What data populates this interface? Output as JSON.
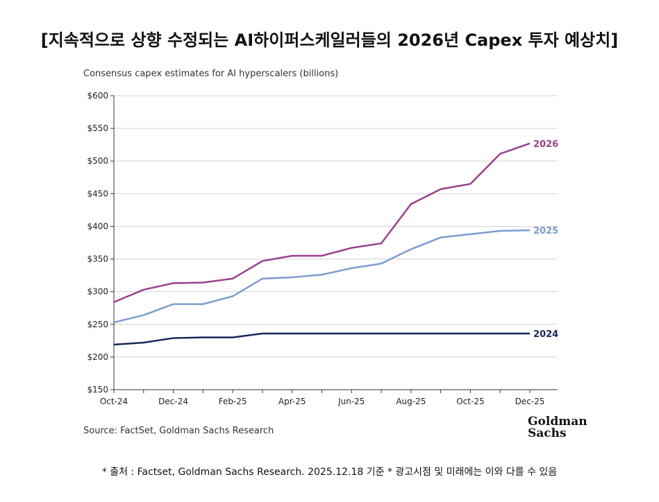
{
  "header": {
    "title": "[지속적으로 상향 수정되는 AI하이퍼스케일러들의 2026년 Capex 투자 예상치]"
  },
  "footer": {
    "note": "* 출처 : Factset, Goldman Sachs Research. 2025.12.18 기준 * 광고시점 및 미래에는 이와 다를 수 있음",
    "logo": "Goldman Sachs"
  },
  "chart_data": {
    "type": "line",
    "title": "Consensus capex estimates for AI hyperscalers (billions)",
    "source": "Source: FactSet, Goldman Sachs Research",
    "x": [
      "Oct-24",
      "Nov-24",
      "Dec-24",
      "Jan-25",
      "Feb-25",
      "Mar-25",
      "Apr-25",
      "May-25",
      "Jun-25",
      "Jul-25",
      "Aug-25",
      "Sep-25",
      "Oct-25",
      "Nov-25",
      "Dec-25"
    ],
    "xticks": [
      "Oct-24",
      "Dec-24",
      "Feb-25",
      "Apr-25",
      "Jun-25",
      "Aug-25",
      "Oct-25",
      "Dec-25"
    ],
    "yticks": [
      "$150",
      "$200",
      "$250",
      "$300",
      "$350",
      "$400",
      "$450",
      "$500",
      "$550",
      "$600"
    ],
    "ylim": [
      150,
      600
    ],
    "grid": true,
    "series": [
      {
        "name": "2026",
        "color": "#9b3f8c",
        "values": [
          284,
          303,
          313,
          314,
          320,
          347,
          355,
          355,
          367,
          374,
          434,
          457,
          465,
          511,
          527
        ]
      },
      {
        "name": "2025",
        "color": "#7b9bcf",
        "values": [
          253,
          264,
          281,
          281,
          293,
          320,
          322,
          326,
          336,
          343,
          365,
          383,
          388,
          393,
          394
        ]
      },
      {
        "name": "2024",
        "color": "#15285a",
        "values": [
          219,
          222,
          229,
          230,
          230,
          236,
          236,
          236,
          236,
          236,
          236,
          236,
          236,
          236,
          236
        ]
      }
    ]
  }
}
